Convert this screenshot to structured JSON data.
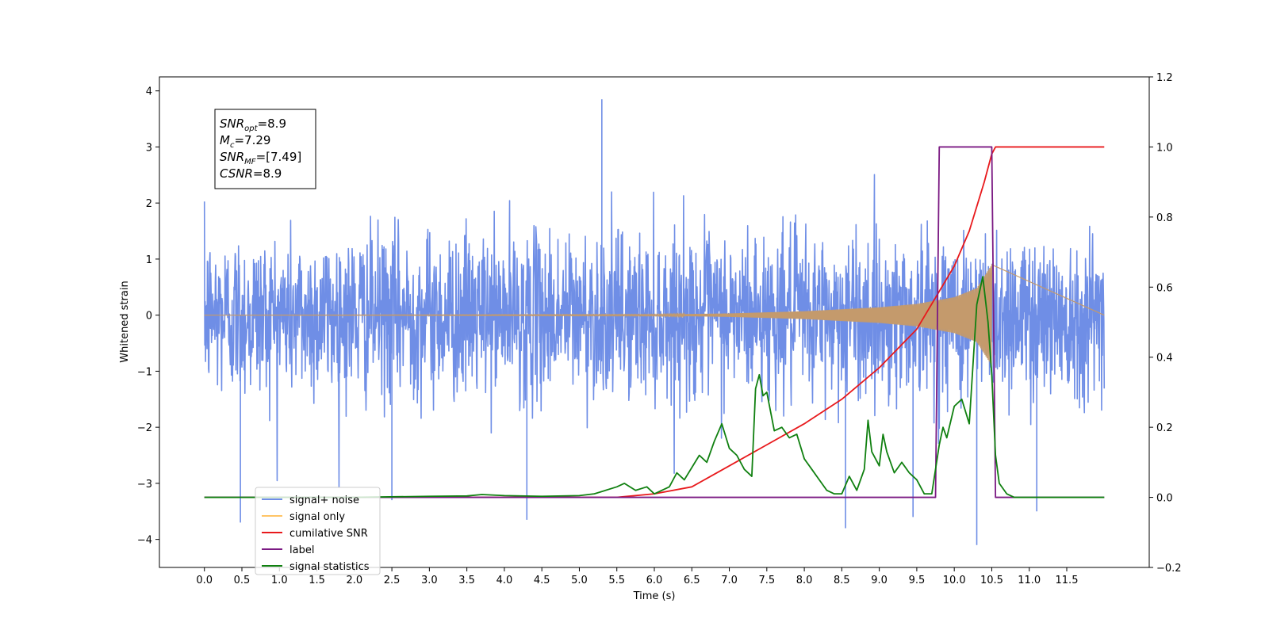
{
  "chart_data": {
    "type": "line",
    "xlabel": "Time (s)",
    "ylabel_left": "Whitened strain",
    "xlim": [
      -0.6,
      12.6
    ],
    "ylim_left": [
      -4.5,
      4.25
    ],
    "ylim_right": [
      -0.2,
      1.2
    ],
    "x_ticks": [
      0.0,
      0.5,
      1.0,
      1.5,
      2.0,
      2.5,
      3.0,
      3.5,
      4.0,
      4.5,
      5.0,
      5.5,
      6.0,
      6.5,
      7.0,
      7.5,
      8.0,
      8.5,
      9.0,
      9.5,
      10.0,
      10.5,
      11.0,
      11.5
    ],
    "y_ticks_left": [
      -4,
      -3,
      -2,
      -1,
      0,
      1,
      2,
      3,
      4
    ],
    "y_ticks_right": [
      -0.2,
      0.0,
      0.2,
      0.4,
      0.6,
      0.8,
      1.0,
      1.2
    ],
    "grid": false,
    "legend_position": "lower-left",
    "annotation": {
      "lines": [
        {
          "main": "SNR",
          "sub": "opt",
          "rest": "=8.9"
        },
        {
          "main": "M",
          "sub": "c",
          "rest": "=7.29"
        },
        {
          "main": "SNR",
          "sub": "MF",
          "rest": "=[7.49]"
        },
        {
          "main": "CSNR",
          "sub": "",
          "rest": "=8.9"
        }
      ]
    },
    "series": [
      {
        "name": "signal+ noise",
        "axis": "left",
        "color": "#6f8ee6",
        "style": "noise",
        "x_range": [
          0.0,
          12.0
        ],
        "typical_envelope": [
          -1.9,
          1.9
        ],
        "peaks": [
          [
            5.3,
            3.85
          ],
          [
            0.48,
            -3.7
          ],
          [
            10.3,
            -4.1
          ],
          [
            4.3,
            -3.65
          ],
          [
            9.45,
            -3.6
          ],
          [
            8.55,
            -3.8
          ],
          [
            11.1,
            -3.5
          ],
          [
            2.5,
            -3.3
          ]
        ]
      },
      {
        "name": "signal only",
        "axis": "left",
        "color": "#c49a6c",
        "style": "chirp",
        "x_range": [
          0.0,
          10.5
        ],
        "envelope": {
          "x": [
            0.0,
            6.0,
            7.0,
            8.0,
            9.0,
            9.5,
            10.0,
            10.3,
            10.5
          ],
          "amp": [
            0.0,
            0.01,
            0.03,
            0.07,
            0.14,
            0.2,
            0.32,
            0.48,
            0.9
          ]
        }
      },
      {
        "name": "cumilative SNR",
        "axis": "right",
        "color": "#e8191c",
        "x": [
          0.0,
          5.0,
          5.5,
          6.0,
          6.5,
          7.0,
          7.5,
          8.0,
          8.5,
          9.0,
          9.5,
          10.0,
          10.2,
          10.4,
          10.5,
          10.55,
          12.0
        ],
        "y": [
          0.0,
          0.0,
          0.0,
          0.01,
          0.03,
          0.09,
          0.15,
          0.21,
          0.28,
          0.37,
          0.48,
          0.66,
          0.76,
          0.9,
          0.98,
          1.0,
          1.0
        ]
      },
      {
        "name": "label",
        "axis": "right",
        "color": "#7b1a83",
        "x": [
          0.0,
          9.75,
          9.8,
          10.5,
          10.55,
          12.0
        ],
        "y": [
          0.0,
          0.0,
          1.0,
          1.0,
          0.0,
          0.0
        ]
      },
      {
        "name": "signal statistics",
        "axis": "right",
        "color": "#108010",
        "x": [
          0.0,
          2.0,
          3.0,
          3.5,
          3.7,
          4.0,
          4.5,
          5.0,
          5.2,
          5.5,
          5.6,
          5.75,
          5.9,
          6.0,
          6.2,
          6.3,
          6.4,
          6.6,
          6.7,
          6.8,
          6.9,
          7.0,
          7.1,
          7.2,
          7.3,
          7.35,
          7.4,
          7.45,
          7.5,
          7.6,
          7.7,
          7.8,
          7.9,
          8.0,
          8.1,
          8.2,
          8.3,
          8.4,
          8.5,
          8.6,
          8.7,
          8.8,
          8.85,
          8.9,
          9.0,
          9.05,
          9.1,
          9.2,
          9.3,
          9.4,
          9.5,
          9.6,
          9.7,
          9.8,
          9.85,
          9.9,
          10.0,
          10.1,
          10.2,
          10.3,
          10.38,
          10.45,
          10.5,
          10.55,
          10.6,
          10.7,
          10.8,
          12.0
        ],
        "y": [
          0.0,
          0.0,
          0.003,
          0.004,
          0.008,
          0.005,
          0.003,
          0.005,
          0.01,
          0.03,
          0.04,
          0.02,
          0.03,
          0.01,
          0.03,
          0.07,
          0.05,
          0.12,
          0.1,
          0.16,
          0.21,
          0.14,
          0.12,
          0.08,
          0.06,
          0.31,
          0.35,
          0.29,
          0.3,
          0.19,
          0.2,
          0.17,
          0.18,
          0.11,
          0.08,
          0.05,
          0.02,
          0.01,
          0.01,
          0.06,
          0.02,
          0.08,
          0.22,
          0.13,
          0.09,
          0.18,
          0.13,
          0.07,
          0.1,
          0.07,
          0.05,
          0.01,
          0.01,
          0.15,
          0.2,
          0.17,
          0.26,
          0.28,
          0.21,
          0.55,
          0.63,
          0.5,
          0.35,
          0.12,
          0.04,
          0.01,
          0.0,
          0.0
        ]
      }
    ],
    "legend": [
      {
        "label": "signal+ noise",
        "color": "#6f8ee6"
      },
      {
        "label": "signal only",
        "color": "#ffc466"
      },
      {
        "label": "cumilative SNR",
        "color": "#e8191c"
      },
      {
        "label": "label",
        "color": "#7b1a83"
      },
      {
        "label": "signal statistics",
        "color": "#108010"
      }
    ]
  }
}
